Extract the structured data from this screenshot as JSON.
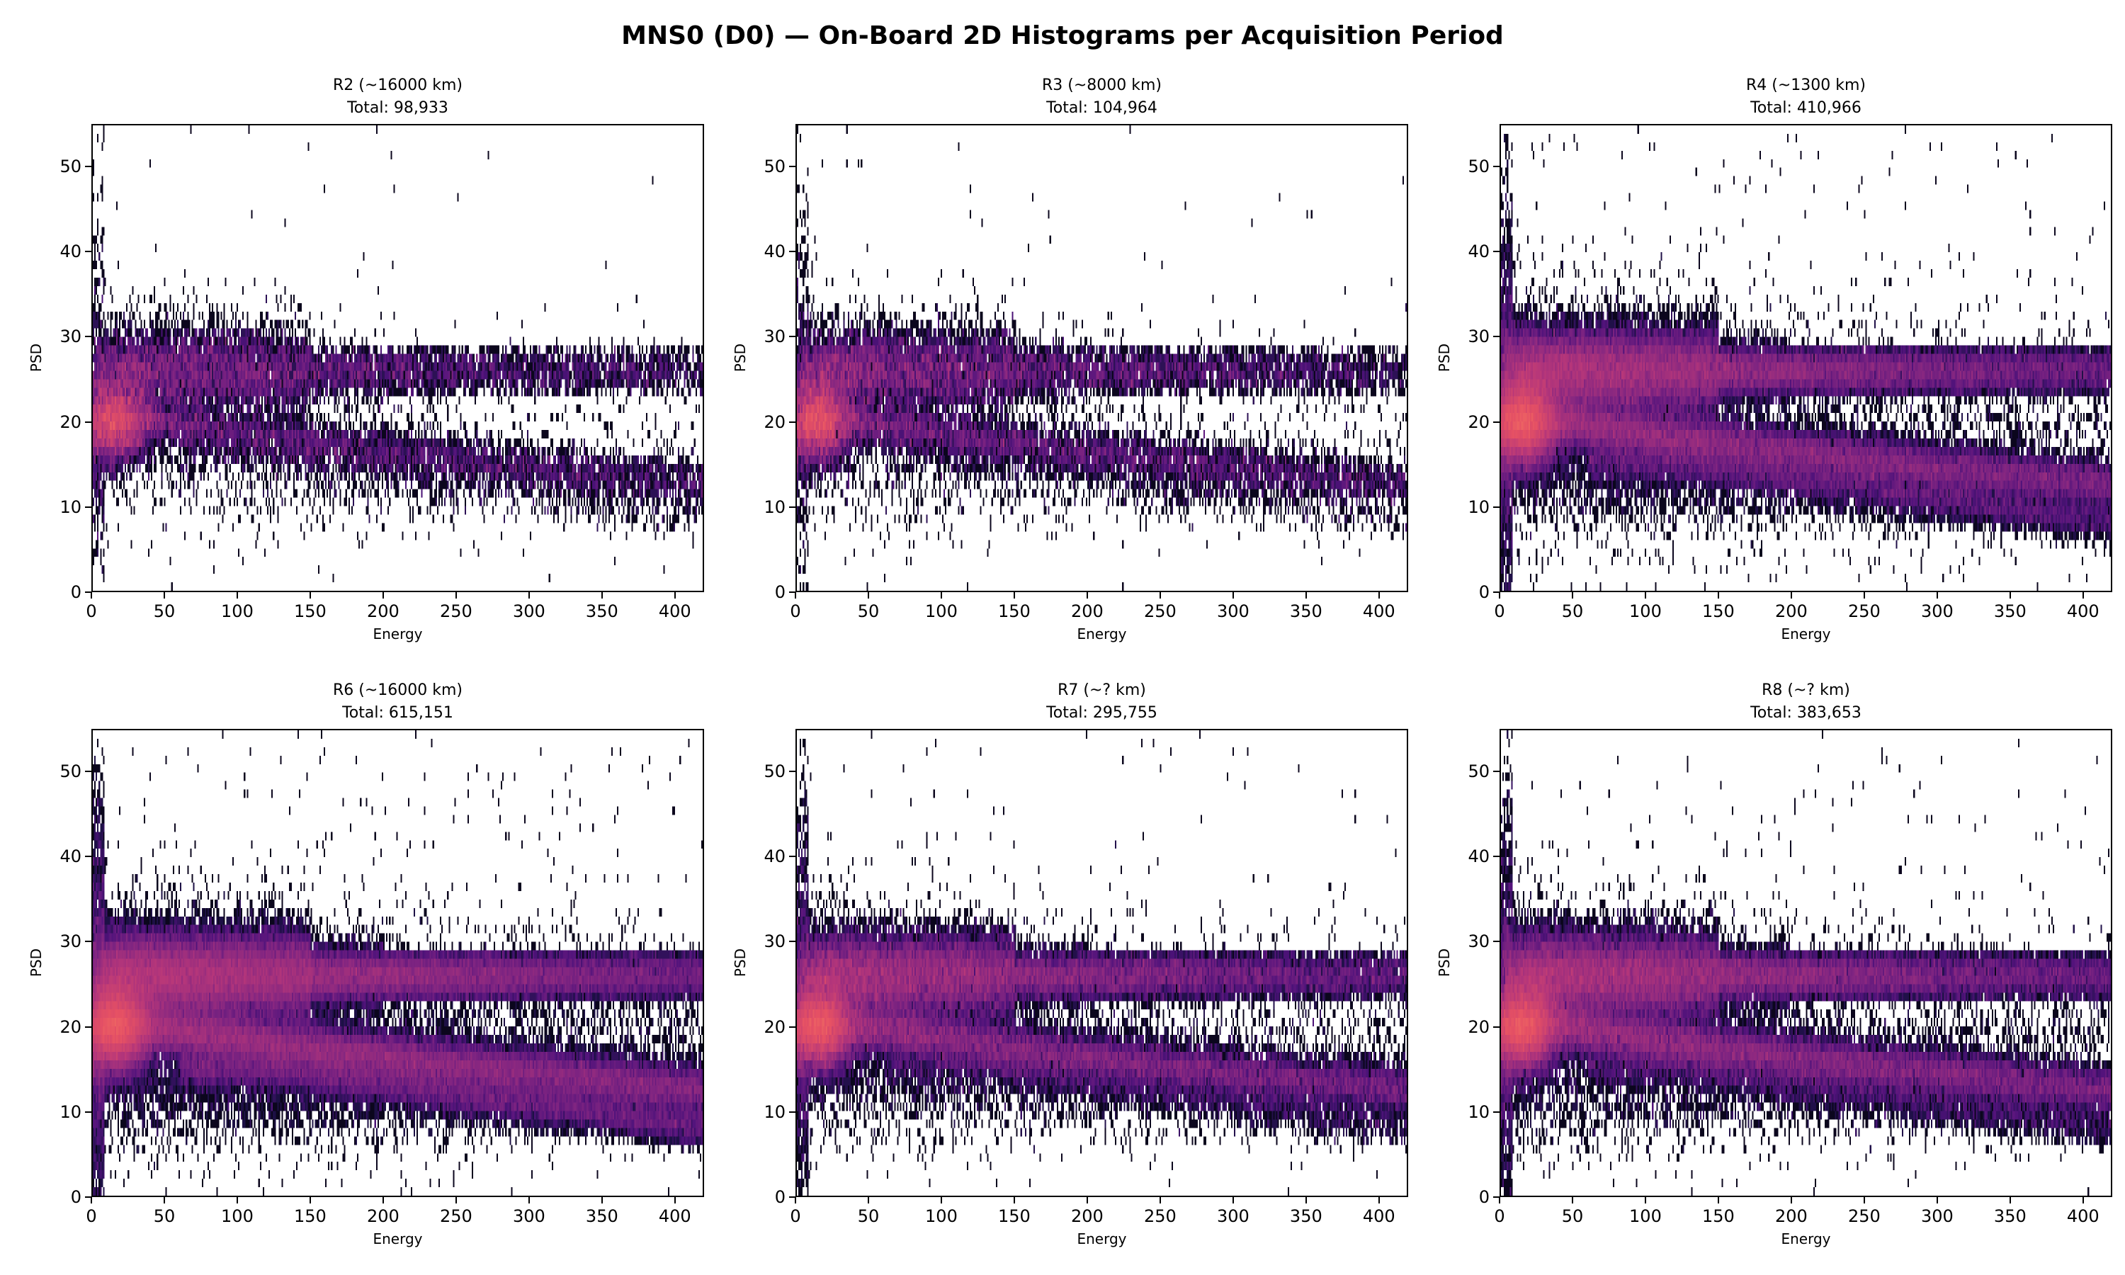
{
  "title": "MNS0 (D0) — On-Board 2D Histograms per Acquisition Period",
  "chart_data": {
    "type": "heatmap",
    "title": "MNS0 (D0) — On-Board 2D Histograms per Acquisition Period",
    "xlabel": "Energy",
    "ylabel": "PSD",
    "xlim": [
      0,
      420
    ],
    "ylim": [
      0,
      55
    ],
    "xticks": [
      "0",
      "50",
      "100",
      "150",
      "200",
      "250",
      "300",
      "350",
      "400"
    ],
    "yticks": [
      "0",
      "10",
      "20",
      "30",
      "40",
      "50"
    ],
    "colormap": "magma",
    "norm": "log",
    "grid": false,
    "panels": [
      {
        "title": "R2 (~16000 km)",
        "total": "Total: 98,933",
        "total_counts": 98933
      },
      {
        "title": "R3 (~8000 km)",
        "total": "Total: 104,964",
        "total_counts": 104964
      },
      {
        "title": "R4 (~1300 km)",
        "total": "Total: 410,966",
        "total_counts": 410966
      },
      {
        "title": "R6 (~16000 km)",
        "total": "Total: 615,151",
        "total_counts": 615151
      },
      {
        "title": "R7 (~? km)",
        "total": "Total: 295,755",
        "total_counts": 295755
      },
      {
        "title": "R8 (~? km)",
        "total": "Total: 383,653",
        "total_counts": 383653
      }
    ]
  }
}
